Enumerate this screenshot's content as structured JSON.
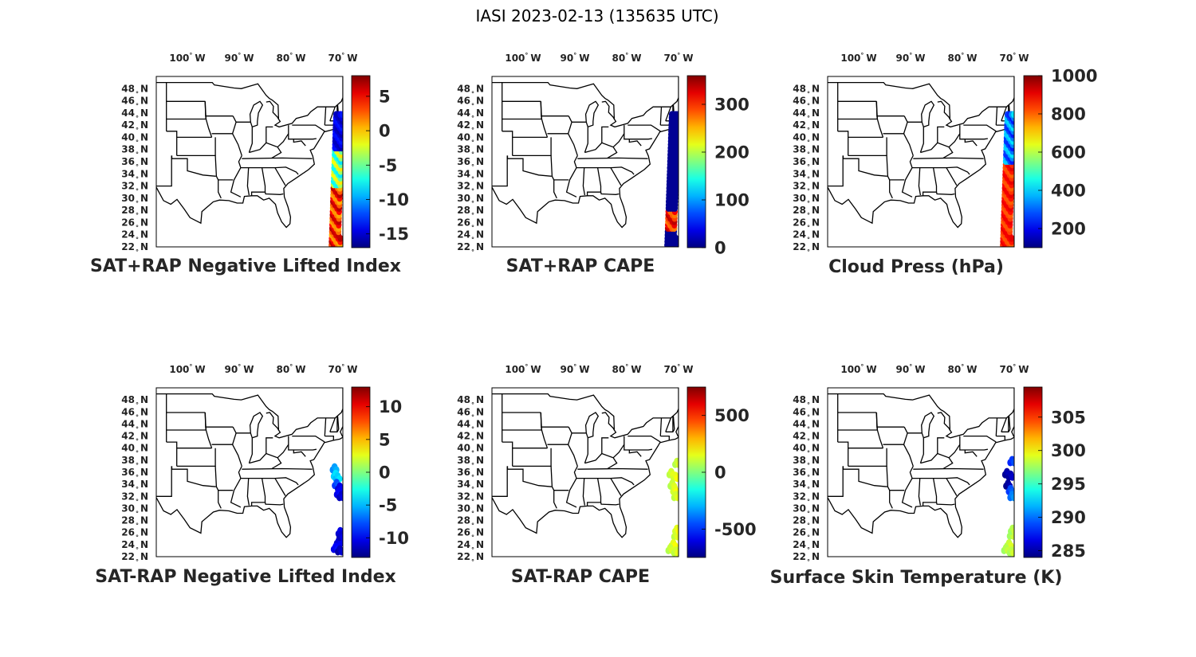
{
  "figure": {
    "title": "IASI 2023-02-13 (135635 UTC)"
  },
  "map": {
    "lon_range": [
      -106,
      -70
    ],
    "lat_range": [
      22,
      50
    ],
    "lon_ticks": [
      {
        "value": -100,
        "num": "100",
        "hem": "W"
      },
      {
        "value": -90,
        "num": "90",
        "hem": "W"
      },
      {
        "value": -80,
        "num": "80",
        "hem": "W"
      },
      {
        "value": -70,
        "num": "70",
        "hem": "W"
      }
    ],
    "lat_ticks": [
      {
        "value": 48,
        "num": "48",
        "hem": "N"
      },
      {
        "value": 46,
        "num": "46",
        "hem": "N"
      },
      {
        "value": 44,
        "num": "44",
        "hem": "N"
      },
      {
        "value": 42,
        "num": "42",
        "hem": "N"
      },
      {
        "value": 40,
        "num": "40",
        "hem": "N"
      },
      {
        "value": 38,
        "num": "38",
        "hem": "N"
      },
      {
        "value": 36,
        "num": "36",
        "hem": "N"
      },
      {
        "value": 34,
        "num": "34",
        "hem": "N"
      },
      {
        "value": 32,
        "num": "32",
        "hem": "N"
      },
      {
        "value": 30,
        "num": "30",
        "hem": "N"
      },
      {
        "value": 28,
        "num": "28",
        "hem": "N"
      },
      {
        "value": 26,
        "num": "26",
        "hem": "N"
      },
      {
        "value": 24,
        "num": "24",
        "hem": "N"
      },
      {
        "value": 22,
        "num": "22",
        "hem": "N"
      }
    ]
  },
  "panels": [
    {
      "title": "SAT+RAP Negative Lifted Index",
      "colormap": "jet",
      "clim": [
        -17,
        8
      ],
      "ticks": [
        {
          "value": 5,
          "label": "5"
        },
        {
          "value": 0,
          "label": "0"
        },
        {
          "value": -5,
          "label": "-5"
        },
        {
          "value": -10,
          "label": "-10"
        },
        {
          "value": -15,
          "label": "-15"
        }
      ],
      "swath": "full",
      "pattern": "lifted"
    },
    {
      "title": "SAT+RAP CAPE",
      "colormap": "jet",
      "clim": [
        0,
        360
      ],
      "ticks": [
        {
          "value": 300,
          "label": "300"
        },
        {
          "value": 200,
          "label": "200"
        },
        {
          "value": 100,
          "label": "100"
        },
        {
          "value": 0,
          "label": "0"
        }
      ],
      "swath": "full",
      "pattern": "cape"
    },
    {
      "title": "Cloud Press (hPa)",
      "colormap": "jet",
      "clim": [
        100,
        1000
      ],
      "ticks": [
        {
          "value": 1000,
          "label": "1000"
        },
        {
          "value": 800,
          "label": "800"
        },
        {
          "value": 600,
          "label": "600"
        },
        {
          "value": 400,
          "label": "400"
        },
        {
          "value": 200,
          "label": "200"
        }
      ],
      "swath": "full",
      "pattern": "cloud"
    },
    {
      "title": "SAT-RAP Negative Lifted Index",
      "colormap": "jet",
      "clim": [
        -13,
        13
      ],
      "ticks": [
        {
          "value": 10,
          "label": "10"
        },
        {
          "value": 5,
          "label": "5"
        },
        {
          "value": 0,
          "label": "0"
        },
        {
          "value": -5,
          "label": "-5"
        },
        {
          "value": -10,
          "label": "-10"
        }
      ],
      "swath": "sparse",
      "pattern": "dli"
    },
    {
      "title": "SAT-RAP CAPE",
      "colormap": "jet",
      "clim": [
        -750,
        750
      ],
      "ticks": [
        {
          "value": 500,
          "label": "500"
        },
        {
          "value": 0,
          "label": "0"
        },
        {
          "value": -500,
          "label": "-500"
        }
      ],
      "swath": "sparse",
      "pattern": "dcape"
    },
    {
      "title": "Surface Skin Temperature (K)",
      "colormap": "jet",
      "clim": [
        284,
        309.5
      ],
      "ticks": [
        {
          "value": 305,
          "label": "305"
        },
        {
          "value": 300,
          "label": "300"
        },
        {
          "value": 295,
          "label": "295"
        },
        {
          "value": 290,
          "label": "290"
        },
        {
          "value": 285,
          "label": "285"
        }
      ],
      "swath": "sparse",
      "pattern": "skin"
    }
  ]
}
